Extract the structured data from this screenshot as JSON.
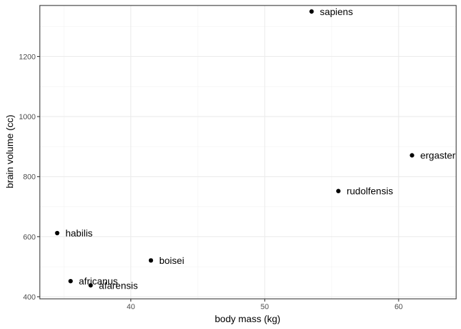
{
  "chart_data": {
    "type": "scatter",
    "title": "",
    "xlabel": "body mass (kg)",
    "ylabel": "brain volume (cc)",
    "xlim": [
      33.2,
      64.3
    ],
    "ylim": [
      393,
      1370
    ],
    "x_ticks": [
      40,
      50,
      60
    ],
    "y_ticks": [
      400,
      600,
      800,
      1000,
      1200
    ],
    "grid": true,
    "legend": "none",
    "point_color": "#000000",
    "points": [
      {
        "label": "afarensis",
        "x": 37.0,
        "y": 438
      },
      {
        "label": "africanus",
        "x": 35.5,
        "y": 452
      },
      {
        "label": "habilis",
        "x": 34.5,
        "y": 612
      },
      {
        "label": "boisei",
        "x": 41.5,
        "y": 521
      },
      {
        "label": "rudolfensis",
        "x": 55.5,
        "y": 752
      },
      {
        "label": "ergaster",
        "x": 61.0,
        "y": 871
      },
      {
        "label": "sapiens",
        "x": 53.5,
        "y": 1350
      }
    ]
  }
}
